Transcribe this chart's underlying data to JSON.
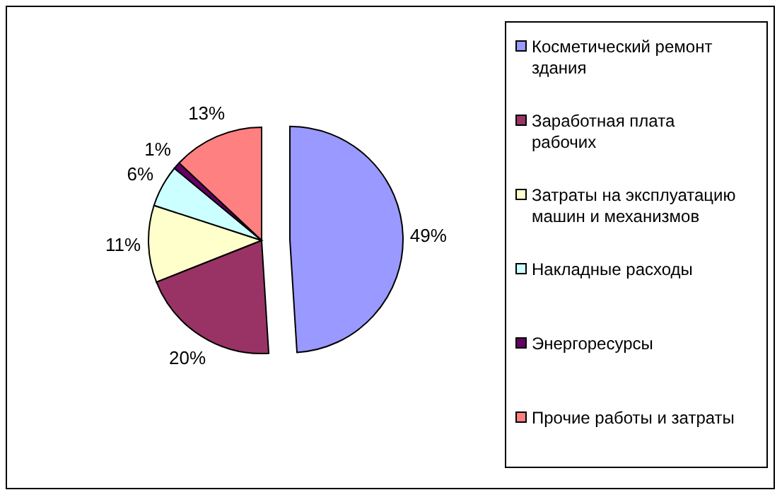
{
  "chart_data": {
    "type": "pie",
    "categories": [
      "Косметический  ремонт здания",
      "Заработная плата рабочих",
      "Затраты на эксплуатацию машин и механизмов",
      "Накладные расходы",
      "Энергоресурсы",
      "Прочие работы и затраты"
    ],
    "values": [
      49,
      20,
      11,
      6,
      1,
      13
    ],
    "value_labels": [
      "49%",
      "20%",
      "11%",
      "6%",
      "1%",
      "13%"
    ],
    "colors": [
      "#9999ff",
      "#993366",
      "#ffffcc",
      "#ccffff",
      "#660066",
      "#ff8080"
    ],
    "legend": "right"
  }
}
